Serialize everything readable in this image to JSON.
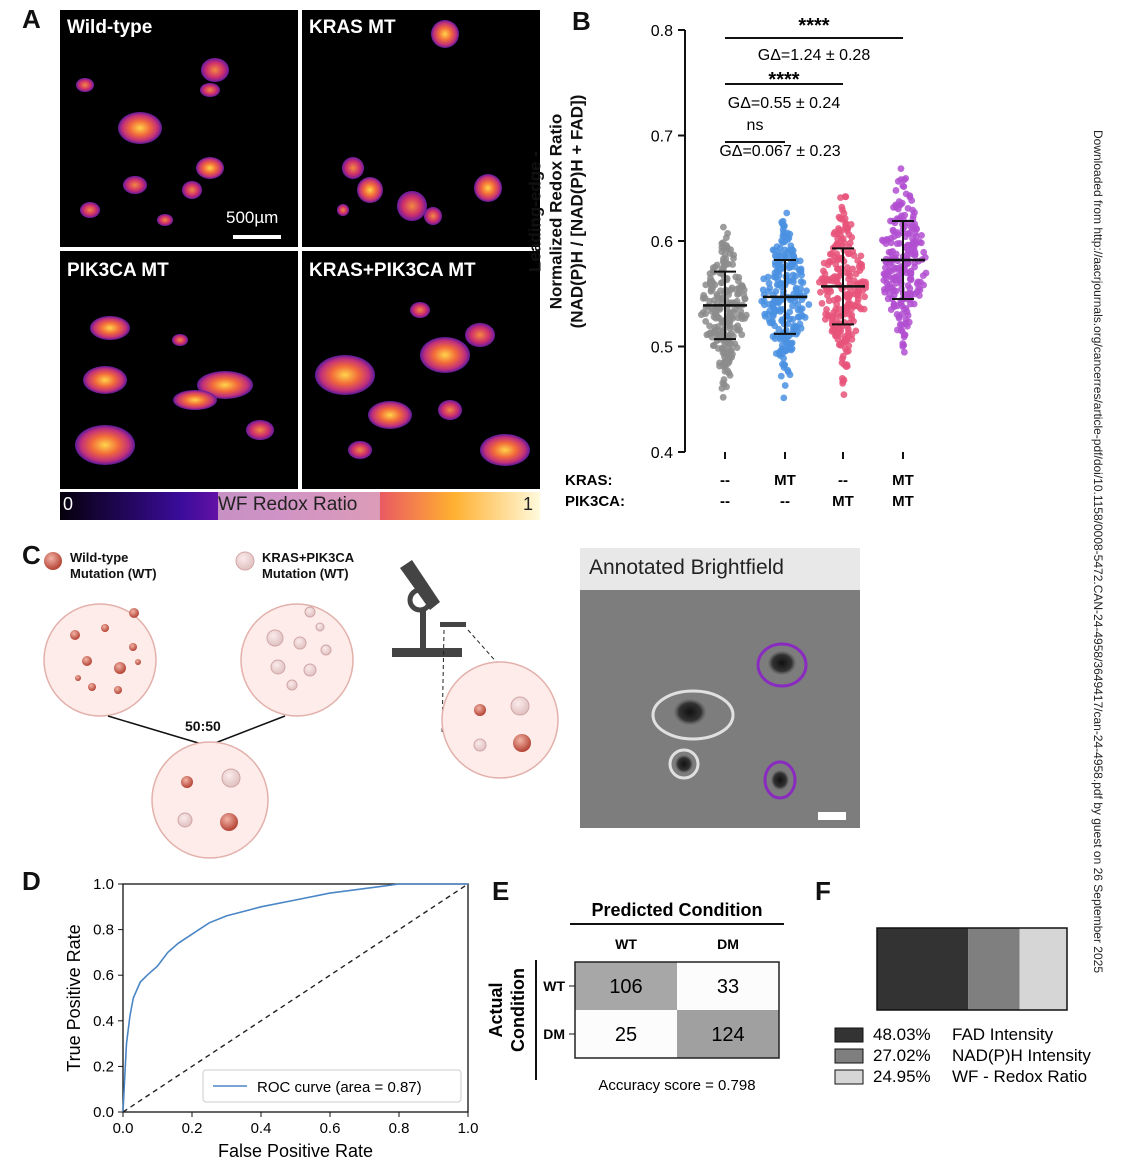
{
  "panel_labels": {
    "a": "A",
    "b": "B",
    "c": "C",
    "d": "D",
    "e": "E",
    "f": "F"
  },
  "panelA": {
    "titles": [
      "Wild-type",
      "KRAS MT",
      "PIK3CA MT",
      "KRAS+PIK3CA MT"
    ],
    "scale_bar": "500µm",
    "colorbar": {
      "min": "0",
      "label": "WF Redox Ratio",
      "max": "1"
    }
  },
  "panelC": {
    "legend_wt": [
      "Wild-type",
      "Mutation (WT)"
    ],
    "legend_dm": [
      "KRAS+PIK3CA",
      "Mutation (WT)"
    ],
    "mix_label": "50:50",
    "bf_title": "Annotated Brightfield"
  },
  "side_note": "Downloaded from http://aacrjournals.org/cancerres/article-pdf/doi/10.1158/0008-5472.CAN-24-4958/3649417/can-24-4958.pdf by guest on 26 September 2025",
  "chart_data": [
    {
      "type": "scatter",
      "title": "",
      "ylabel": [
        "Leading-edge -",
        "Normalized Redox Ratio",
        "(NAD(P)H / [NAD(P)H + FAD])"
      ],
      "ylim": [
        0.4,
        0.8
      ],
      "yticks": [
        "0.8",
        "0.7",
        "0.6",
        "0.5",
        "0.4"
      ],
      "row_labels": [
        "KRAS:",
        "PIK3CA:"
      ],
      "groups": [
        {
          "kras": "--",
          "pik3ca": "--",
          "mean": 0.539,
          "sd": 0.032,
          "min": 0.435,
          "max": 0.625,
          "color": "#8c8c8c"
        },
        {
          "kras": "MT",
          "pik3ca": "--",
          "mean": 0.547,
          "sd": 0.035,
          "min": 0.435,
          "max": 0.635,
          "color": "#4a90e2"
        },
        {
          "kras": "--",
          "pik3ca": "MT",
          "mean": 0.557,
          "sd": 0.036,
          "min": 0.44,
          "max": 0.642,
          "color": "#e8537a"
        },
        {
          "kras": "MT",
          "pik3ca": "MT",
          "mean": 0.582,
          "sd": 0.037,
          "min": 0.435,
          "max": 0.675,
          "color": "#b14fd1"
        }
      ],
      "comparisons": [
        {
          "sig": "****",
          "stat": "GΔ=1.24 ± 0.28",
          "from": 0,
          "to": 3
        },
        {
          "sig": "****",
          "stat": "GΔ=0.55 ± 0.24",
          "from": 0,
          "to": 2
        },
        {
          "sig": "ns",
          "stat": "GΔ=0.067 ± 0.23",
          "from": 0,
          "to": 1
        }
      ]
    },
    {
      "type": "line",
      "xlabel": "False Positive Rate",
      "ylabel": "True Positive Rate",
      "xlim": [
        0,
        1
      ],
      "ylim": [
        0,
        1
      ],
      "ticks": [
        "0.0",
        "0.2",
        "0.4",
        "0.6",
        "0.8",
        "1.0"
      ],
      "legend": "ROC curve (area = 0.87)",
      "series": [
        {
          "name": "ROC curve (area = 0.87)",
          "x": [
            0,
            0.005,
            0.01,
            0.02,
            0.03,
            0.05,
            0.07,
            0.1,
            0.13,
            0.16,
            0.2,
            0.25,
            0.3,
            0.35,
            0.4,
            0.5,
            0.6,
            0.7,
            0.8,
            0.9,
            1.0
          ],
          "y": [
            0,
            0.15,
            0.3,
            0.42,
            0.5,
            0.57,
            0.6,
            0.64,
            0.7,
            0.74,
            0.78,
            0.83,
            0.86,
            0.88,
            0.9,
            0.93,
            0.96,
            0.98,
            1.0,
            1.0,
            1.0
          ]
        },
        {
          "name": "",
          "x": [
            0,
            1
          ],
          "y": [
            0,
            1
          ]
        }
      ]
    },
    {
      "type": "heatmap",
      "title": "Predicted Condition",
      "ylabel": [
        "Actual",
        "Condition"
      ],
      "columns": [
        "WT",
        "DM"
      ],
      "rows": [
        "WT",
        "DM"
      ],
      "values": [
        [
          106,
          33
        ],
        [
          25,
          124
        ]
      ],
      "accuracy": "Accuracy score = 0.798"
    },
    {
      "type": "bar",
      "categories": [
        "FAD Intensity",
        "NAD(P)H Intensity",
        "WF - Redox Ratio"
      ],
      "values": [
        48.03,
        27.02,
        24.95
      ],
      "labels": [
        "48.03%",
        "27.02%",
        "24.95%"
      ],
      "colors": [
        "#333333",
        "#7f7f7f",
        "#d6d6d6"
      ]
    }
  ]
}
